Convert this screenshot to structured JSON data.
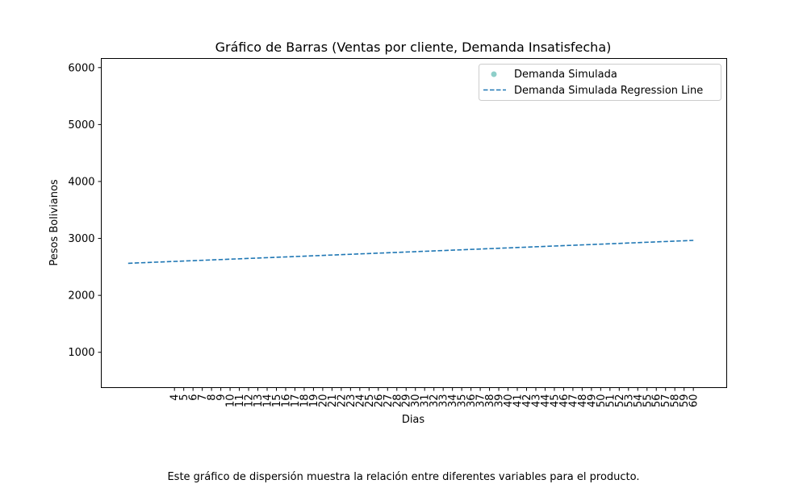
{
  "caption": "Este gráfico de dispersión muestra la relación entre diferentes variables para el producto.",
  "chart_data": {
    "type": "scatter",
    "title": "Gráfico de Barras (Ventas por cliente, Demanda Insatisfecha)",
    "xlabel": "Dias",
    "ylabel": "Pesos Bolivianos",
    "x_tick_labels": [
      "4",
      "5",
      "6",
      "7",
      "8",
      "9",
      "10",
      "11",
      "12",
      "13",
      "14",
      "15",
      "16",
      "17",
      "18",
      "19",
      "20",
      "21",
      "22",
      "23",
      "24",
      "25",
      "26",
      "27",
      "28",
      "29",
      "30",
      "31",
      "32",
      "33",
      "34",
      "35",
      "36",
      "37",
      "38",
      "39",
      "40",
      "41",
      "42",
      "43",
      "44",
      "45",
      "46",
      "47",
      "48",
      "49",
      "50",
      "51",
      "52",
      "53",
      "54",
      "55",
      "56",
      "57",
      "58",
      "59",
      "60"
    ],
    "y_ticks": [
      1000,
      2000,
      3000,
      4000,
      5000,
      6000
    ],
    "xlim": [
      -3.9,
      63.6
    ],
    "ylim": [
      380,
      6160
    ],
    "grid": false,
    "legend_position": "top-right",
    "series": [
      {
        "name": "Demanda Simulada",
        "kind": "scatter",
        "color": "#8ecfc9",
        "points": []
      },
      {
        "name": "Demanda Simulada Regression Line",
        "kind": "line",
        "style": "dashed",
        "color": "#1f77b4",
        "x": [
          -1,
          60
        ],
        "y": [
          2563,
          2965
        ]
      }
    ]
  }
}
